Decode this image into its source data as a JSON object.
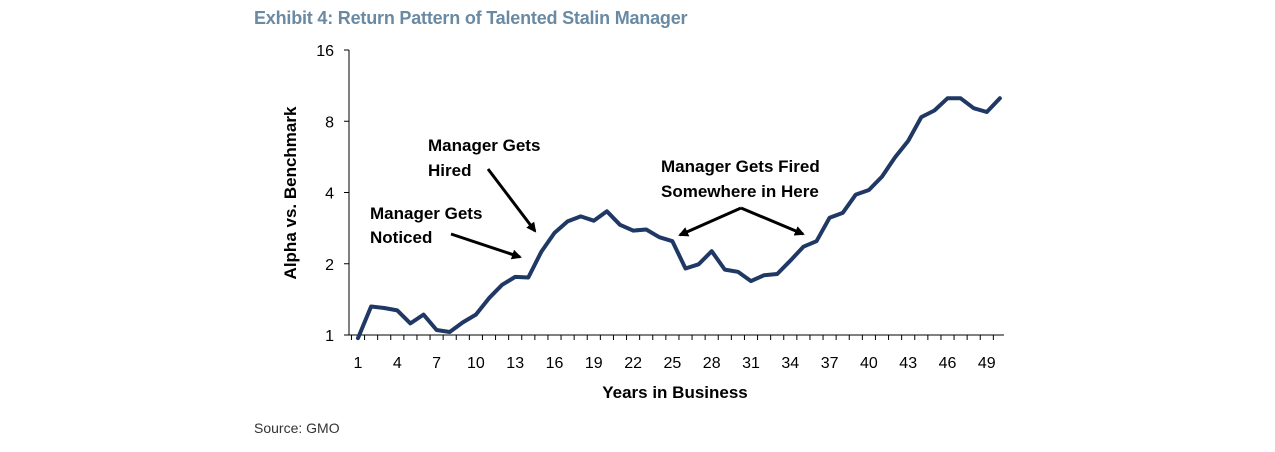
{
  "title": "Exhibit 4: Return Pattern of Talented Stalin Manager",
  "source": "Source: GMO",
  "colors": {
    "line": "#1f3864",
    "title": "#6a8aa3",
    "axis": "#000000"
  },
  "chart_data": {
    "type": "line",
    "xlabel": "Years in Business",
    "ylabel": "Alpha vs. Benchmark",
    "yscale": "log2",
    "ylim": [
      1,
      16
    ],
    "xlim": [
      1,
      50
    ],
    "x_ticks": [
      1,
      4,
      7,
      10,
      13,
      16,
      19,
      22,
      25,
      28,
      31,
      34,
      37,
      40,
      43,
      46,
      49
    ],
    "y_ticks": [
      1,
      2,
      4,
      8,
      16
    ],
    "grid": false,
    "series": [
      {
        "x": [
          1,
          2,
          3,
          4,
          5,
          6,
          7,
          8,
          9,
          10,
          11,
          12,
          13,
          14,
          15,
          16,
          17,
          18,
          19,
          20,
          21,
          22,
          23,
          24,
          25,
          26,
          27,
          28,
          29,
          30,
          31,
          32,
          33,
          34,
          35,
          36,
          37,
          38,
          39,
          40,
          41,
          42,
          43,
          44,
          45,
          46,
          47,
          48,
          49,
          50
        ],
        "values": [
          0.97,
          1.32,
          1.3,
          1.27,
          1.12,
          1.22,
          1.05,
          1.03,
          1.13,
          1.22,
          1.43,
          1.63,
          1.76,
          1.75,
          2.25,
          2.7,
          3.02,
          3.17,
          3.04,
          3.33,
          2.92,
          2.76,
          2.79,
          2.59,
          2.49,
          1.91,
          1.99,
          2.26,
          1.89,
          1.85,
          1.69,
          1.79,
          1.81,
          2.06,
          2.36,
          2.49,
          3.13,
          3.28,
          3.92,
          4.1,
          4.67,
          5.64,
          6.61,
          8.33,
          8.88,
          10.0,
          10.0,
          9.08,
          8.75,
          10.0
        ]
      }
    ],
    "annotations": [
      {
        "lines": [
          "Manager Gets",
          "Noticed"
        ]
      },
      {
        "lines": [
          "Manager Gets",
          "Hired"
        ]
      },
      {
        "lines": [
          "Manager Gets Fired",
          "Somewhere in Here"
        ]
      }
    ]
  }
}
